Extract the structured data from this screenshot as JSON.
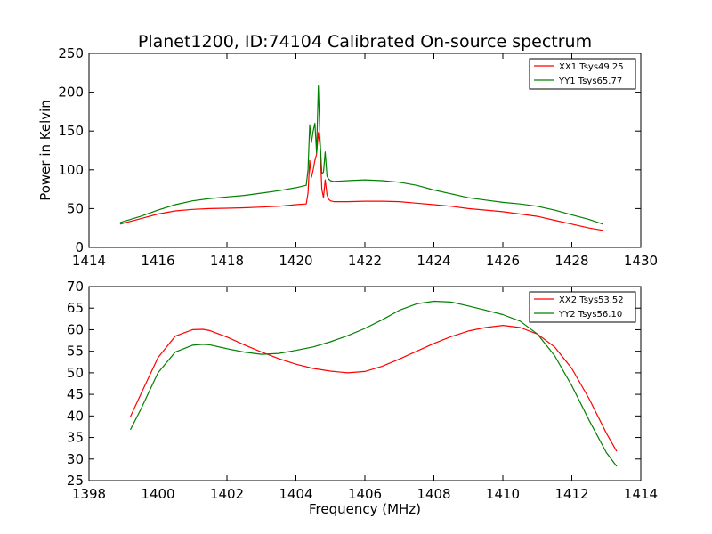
{
  "title": "Planet1200, ID:74104 Calibrated On-source spectrum",
  "chart_data": [
    {
      "type": "line",
      "ylabel": "Power in Kelvin",
      "xlabel": "",
      "xlim": [
        1414,
        1430
      ],
      "ylim": [
        0,
        250
      ],
      "xticks": [
        1414,
        1416,
        1418,
        1420,
        1422,
        1424,
        1426,
        1428,
        1430
      ],
      "yticks": [
        0,
        50,
        100,
        150,
        200,
        250
      ],
      "legend_position": "top-right",
      "series": [
        {
          "name": "XX1 Tsys49.25",
          "color": "#ff0000",
          "x": [
            1414.9,
            1415.5,
            1416.0,
            1416.5,
            1417.0,
            1417.5,
            1418.0,
            1418.5,
            1419.0,
            1419.5,
            1420.0,
            1420.3,
            1420.35,
            1420.4,
            1420.45,
            1420.5,
            1420.55,
            1420.6,
            1420.65,
            1420.7,
            1420.75,
            1420.8,
            1420.85,
            1420.9,
            1420.95,
            1421.0,
            1421.1,
            1421.5,
            1422.0,
            1422.5,
            1423.0,
            1423.5,
            1424.0,
            1424.5,
            1425.0,
            1425.5,
            1426.0,
            1426.5,
            1427.0,
            1427.5,
            1428.0,
            1428.5,
            1428.9
          ],
          "y": [
            30,
            37,
            43,
            47,
            49,
            50,
            50.5,
            51,
            52,
            53,
            55,
            56,
            70,
            112,
            90,
            100,
            112,
            120,
            148,
            130,
            75,
            64,
            87,
            68,
            62,
            60,
            59,
            59,
            59.5,
            59.5,
            59,
            57,
            55,
            53,
            50,
            48,
            46,
            43,
            40,
            35,
            30,
            25,
            22
          ]
        },
        {
          "name": "YY1 Tsys65.77",
          "color": "#008000",
          "x": [
            1414.9,
            1415.5,
            1416.0,
            1416.5,
            1417.0,
            1417.5,
            1418.0,
            1418.5,
            1419.0,
            1419.5,
            1420.0,
            1420.3,
            1420.35,
            1420.4,
            1420.45,
            1420.5,
            1420.55,
            1420.6,
            1420.65,
            1420.7,
            1420.75,
            1420.8,
            1420.85,
            1420.9,
            1420.95,
            1421.0,
            1421.1,
            1421.5,
            1422.0,
            1422.5,
            1423.0,
            1423.5,
            1424.0,
            1424.5,
            1425.0,
            1425.5,
            1426.0,
            1426.5,
            1427.0,
            1427.5,
            1428.0,
            1428.5,
            1428.9
          ],
          "y": [
            32,
            40,
            48,
            55,
            60,
            63,
            65,
            67,
            70,
            73,
            77,
            80,
            100,
            158,
            135,
            150,
            160,
            122,
            208,
            140,
            95,
            97,
            123,
            92,
            88,
            86,
            85,
            86,
            87,
            86,
            84,
            80,
            74,
            69,
            64,
            61,
            58,
            56,
            53,
            48,
            42,
            36,
            30
          ]
        }
      ]
    },
    {
      "type": "line",
      "ylabel": "",
      "xlabel": "Frequency (MHz)",
      "xlim": [
        1398,
        1414
      ],
      "ylim": [
        25,
        70
      ],
      "xticks": [
        1398,
        1400,
        1402,
        1404,
        1406,
        1408,
        1410,
        1412,
        1414
      ],
      "yticks": [
        25,
        30,
        35,
        40,
        45,
        50,
        55,
        60,
        65,
        70
      ],
      "legend_position": "top-right",
      "series": [
        {
          "name": "XX2 Tsys53.52",
          "color": "#ff0000",
          "x": [
            1399.2,
            1399.5,
            1400.0,
            1400.5,
            1401.0,
            1401.3,
            1401.5,
            1402.0,
            1402.5,
            1403.0,
            1403.5,
            1404.0,
            1404.5,
            1405.0,
            1405.5,
            1406.0,
            1406.5,
            1407.0,
            1407.5,
            1408.0,
            1408.5,
            1409.0,
            1409.5,
            1410.0,
            1410.5,
            1411.0,
            1411.5,
            1412.0,
            1412.5,
            1413.0,
            1413.3
          ],
          "y": [
            39.8,
            45,
            53.5,
            58.5,
            60,
            60.1,
            59.8,
            58.3,
            56.5,
            54.8,
            53.3,
            52,
            51,
            50.4,
            50,
            50.3,
            51.5,
            53.2,
            55,
            56.8,
            58.4,
            59.7,
            60.5,
            61,
            60.5,
            59,
            56,
            51,
            44,
            36,
            31.8
          ]
        },
        {
          "name": "YY2 Tsys56.10",
          "color": "#008000",
          "x": [
            1399.2,
            1399.5,
            1400.0,
            1400.5,
            1401.0,
            1401.3,
            1401.5,
            1402.0,
            1402.5,
            1403.0,
            1403.5,
            1404.0,
            1404.5,
            1405.0,
            1405.5,
            1406.0,
            1406.5,
            1407.0,
            1407.5,
            1408.0,
            1408.5,
            1409.0,
            1409.5,
            1410.0,
            1410.5,
            1411.0,
            1411.5,
            1412.0,
            1412.5,
            1413.0,
            1413.3
          ],
          "y": [
            36.8,
            41.5,
            50,
            54.8,
            56.4,
            56.6,
            56.5,
            55.6,
            54.8,
            54.3,
            54.5,
            55.2,
            56,
            57.2,
            58.6,
            60.3,
            62.3,
            64.5,
            66,
            66.6,
            66.4,
            65.5,
            64.5,
            63.5,
            62,
            59,
            54,
            47,
            39,
            31.5,
            28.3
          ]
        }
      ]
    }
  ]
}
